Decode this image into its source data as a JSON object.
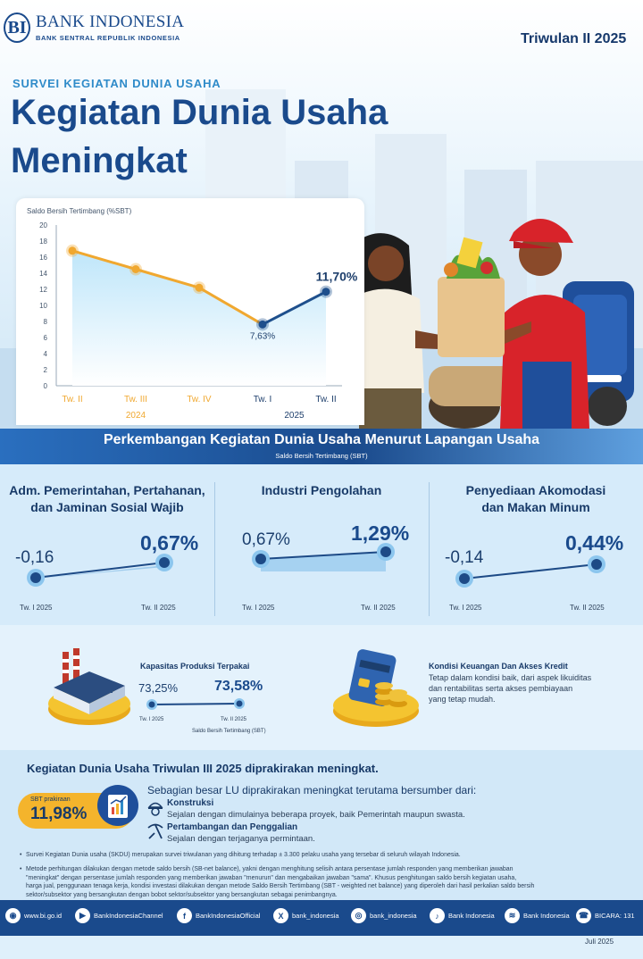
{
  "header": {
    "logo_mark": "BI",
    "bank_name": "BANK INDONESIA",
    "bank_sub": "BANK SENTRAL REPUBLIK INDONESIA",
    "period": "Triwulan II 2025",
    "survey_label": "SURVEI KEGIATAN DUNIA USAHA",
    "headline_line1": "Kegiatan Dunia Usaha",
    "headline_line2": "Meningkat"
  },
  "chart_data": {
    "type": "line",
    "ylabel": "Saldo Bersih Tertimbang (%SBT)",
    "ylim": [
      0,
      20
    ],
    "yticks": [
      0,
      2,
      4,
      6,
      8,
      10,
      12,
      14,
      16,
      18,
      20
    ],
    "categories": [
      "Tw. II",
      "Tw. III",
      "Tw. IV",
      "Tw. I",
      "Tw. II"
    ],
    "year_labels": [
      "2024",
      "2025"
    ],
    "values": [
      16.8,
      14.5,
      12.2,
      7.63,
      11.7
    ],
    "point_labels": [
      "",
      "",
      "",
      "7,63%",
      "11,70%"
    ],
    "colors": {
      "past": "#f0a830",
      "current": "#1e4f8c",
      "area": "#bfe6fa"
    }
  },
  "band": {
    "title": "Perkembangan Kegiatan Dunia Usaha Menurut Lapangan Usaha",
    "subtitle": "Saldo Bersih Tertimbang (SBT)"
  },
  "sectors": [
    {
      "title_line1": "Adm. Pemerintahan, Pertahanan,",
      "title_line2": "dan Jaminan Sosial Wajib",
      "prev": "-0,16",
      "curr": "0,67%",
      "prev_label": "Tw. I 2025",
      "curr_label": "Tw. II 2025"
    },
    {
      "title_line1": "Industri Pengolahan",
      "title_line2": "",
      "prev": "0,67%",
      "curr": "1,29%",
      "prev_label": "Tw. I 2025",
      "curr_label": "Tw. II 2025"
    },
    {
      "title_line1": "Penyediaan Akomodasi",
      "title_line2": "dan Makan Minum",
      "prev": "-0,14",
      "curr": "0,44%",
      "prev_label": "Tw. I 2025",
      "curr_label": "Tw. II 2025"
    }
  ],
  "capacity": {
    "title": "Kapasitas Produksi Terpakai",
    "prev": "73,25%",
    "curr": "73,58%",
    "prev_label": "Tw. I 2025",
    "curr_label": "Tw. II 2025",
    "unit": "Saldo Bersih Tertimbang (SBT)"
  },
  "finance": {
    "title": "Kondisi Keuangan Dan Akses Kredit",
    "line1": "Tetap dalam kondisi baik, dari aspek likuiditas",
    "line2": "dan rentabilitas serta akses pembiayaan",
    "line3": "yang tetap mudah."
  },
  "forecast": {
    "heading": "Kegiatan Dunia Usaha Triwulan III 2025 diprakirakan meningkat.",
    "badge_label": "SBT prakiraan",
    "badge_value": "11,98%",
    "intro": "Sebagian besar LU diprakirakan meningkat terutama bersumber dari:",
    "items": [
      {
        "name": "Konstruksi",
        "desc": "Sejalan dengan dimulainya beberapa proyek, baik Pemerintah maupun swasta."
      },
      {
        "name": "Pertambangan dan Penggalian",
        "desc": "Sejalan dengan terjaganya permintaan."
      }
    ]
  },
  "notes": {
    "n1": "Survei Kegiatan Dunia usaha (SKDU) merupakan survei triwulanan yang dihitung terhadap ± 3.300 pelaku usaha yang tersebar di seluruh wilayah Indonesia.",
    "n2a": "Metode perhitungan dilakukan dengan metode saldo bersih (SB-net balance), yakni dengan menghitung selisih antara persentase jumlah responden yang memberikan jawaban",
    "n2b": "\"meningkat\" dengan persentase jumlah responden yang memberikan jawaban \"menurun\" dan mengabaikan jawaban \"sama\". Khusus penghitungan saldo bersih kegiatan usaha,",
    "n2c": "harga jual, penggunaan tenaga kerja, kondisi investasi dilakukan dengan metode Saldo Bersih Tertimbang (SBT - weighted net balance) yang diperoleh dari hasil perkalian saldo bersih",
    "n2d": "sektor/subsektor yang bersangkutan dengan bobot sektor/subsektor yang bersangkutan sebagai penimbangnya."
  },
  "footer": {
    "website": "www.bi.go.id",
    "youtube": "BankIndonesiaChannel",
    "facebook": "BankIndonesiaOfficial",
    "x": "bank_indonesia",
    "instagram": "bank_indonesia",
    "tiktok": "Bank Indonesia",
    "spotify": "Bank Indonesia",
    "bicara": "BICARA: 131",
    "date": "Juli 2025"
  }
}
